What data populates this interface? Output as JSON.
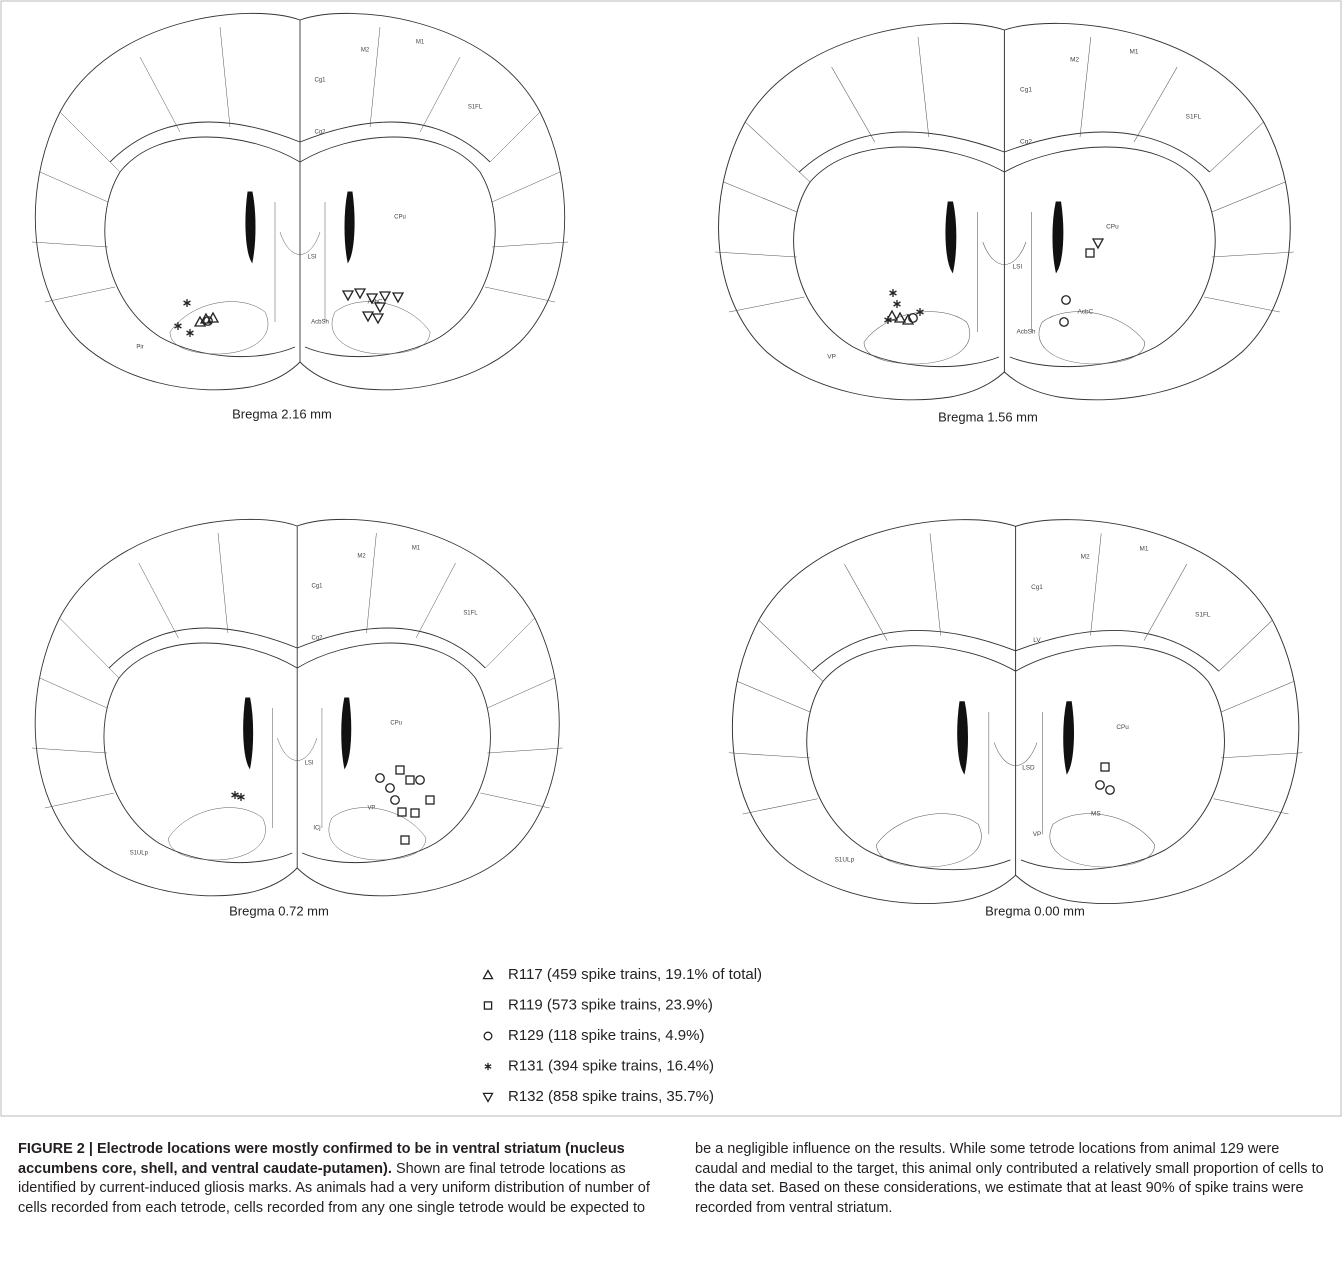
{
  "panels": [
    {
      "label": "Bregma 2.16 mm",
      "regions": [
        "Cg1",
        "M2",
        "M1",
        "S1FL",
        "Cg2",
        "CPu",
        "LSI",
        "AcbC",
        "AcbSh",
        "Pir"
      ]
    },
    {
      "label": "Bregma 1.56 mm",
      "regions": [
        "Cg1",
        "M2",
        "M1",
        "S1FL",
        "Cg2",
        "CPu",
        "LSI",
        "AcbC",
        "AcbSh",
        "VP"
      ]
    },
    {
      "label": "Bregma 0.72 mm",
      "regions": [
        "Cg1",
        "M2",
        "M1",
        "S1FL",
        "Cg2",
        "CPu",
        "LSI",
        "VP",
        "ICj",
        "S1ULp"
      ]
    },
    {
      "label": "Bregma 0.00 mm",
      "regions": [
        "Cg1",
        "M2",
        "M1",
        "S1FL",
        "LV",
        "CPu",
        "LSD",
        "MS",
        "VP",
        "S1ULp"
      ]
    }
  ],
  "legend": [
    {
      "symbol": "triangle",
      "text": "R117 (459 spike trains, 19.1% of total)"
    },
    {
      "symbol": "square",
      "text": "R119 (573 spike trains, 23.9%)"
    },
    {
      "symbol": "circle",
      "text": "R129 (118 spike trains, 4.9%)"
    },
    {
      "symbol": "star",
      "text": "R131 (394 spike trains, 16.4%)"
    },
    {
      "symbol": "inverted-triangle",
      "text": "R132 (858 spike trains, 35.7%)"
    }
  ],
  "caption": {
    "title": "FIGURE 2 | Electrode locations were mostly confirmed to be in ventral striatum (nucleus accumbens core, shell, and ventral caudate-putamen).",
    "left": "Shown are final tetrode locations as identified by current-induced gliosis marks. As animals had a very uniform distribution of number of cells recorded from each tetrode, cells recorded from any one single tetrode would be expected to",
    "right": "be a negligible influence on the results. While some tetrode locations from animal 129 were caudal and medial to the target, this animal only contributed a relatively small proportion of cells to the data set. Based on these considerations, we estimate that at least 90% of spike trains were recorded from ventral striatum."
  }
}
